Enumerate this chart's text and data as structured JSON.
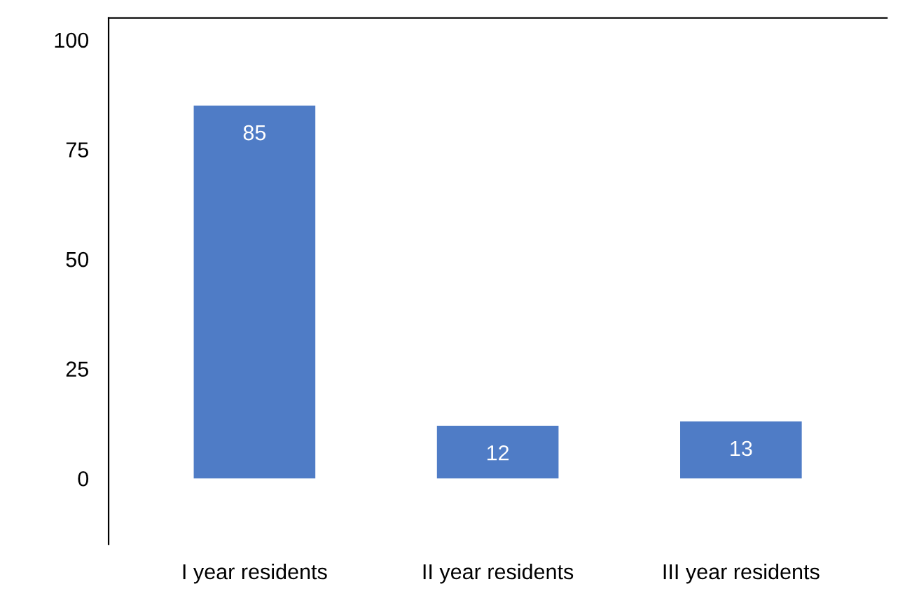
{
  "chart_data": {
    "type": "bar",
    "categories": [
      "I year residents",
      "II year residents",
      "III year residents"
    ],
    "values": [
      85,
      12,
      13
    ],
    "color": "#4f7cc6",
    "ylim": [
      -15,
      105
    ],
    "yticks": [
      0,
      25,
      50,
      75,
      100
    ],
    "data_labels": true,
    "grid": false,
    "legend": false
  }
}
